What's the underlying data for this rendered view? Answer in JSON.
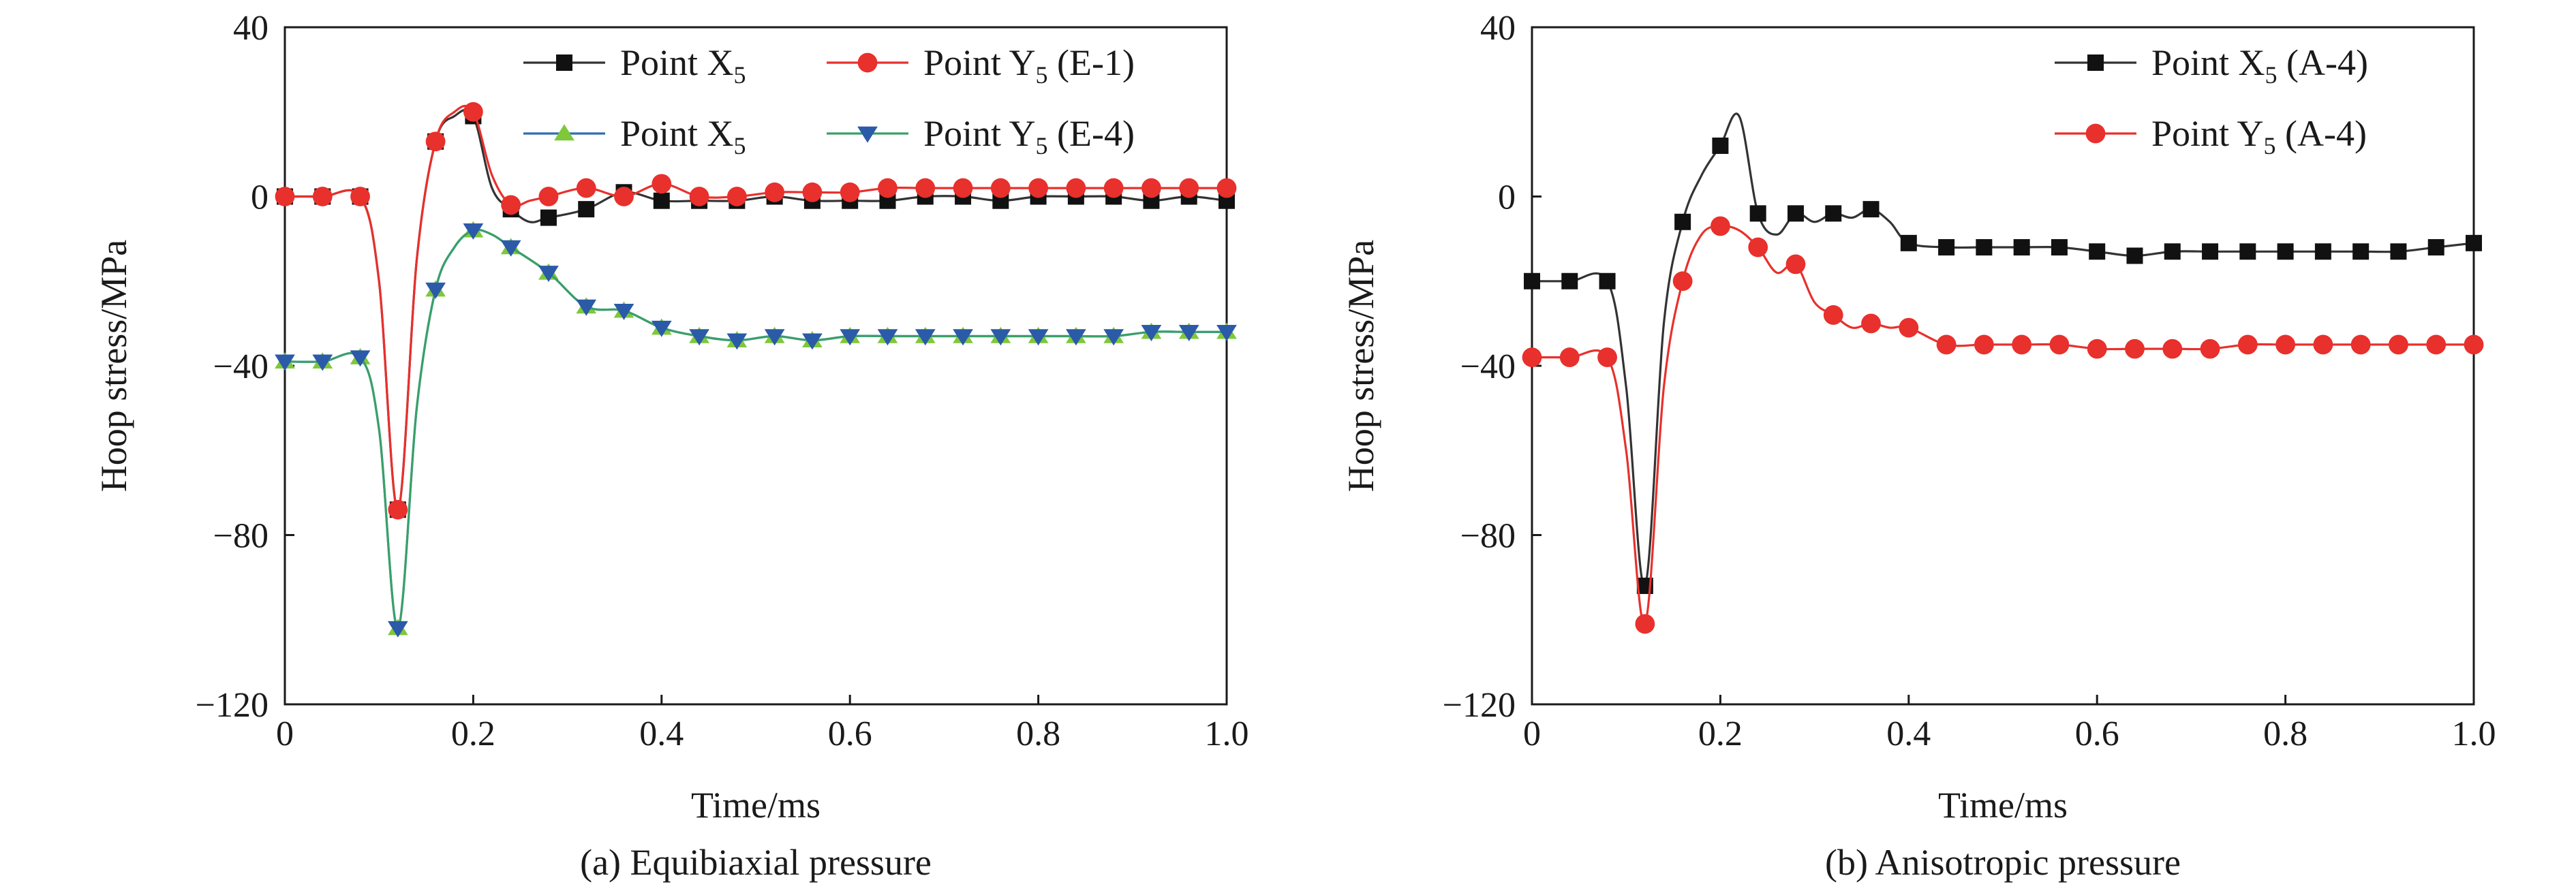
{
  "chart_data": [
    {
      "type": "line",
      "caption": "(a) Equibiaxial pressure",
      "xlabel": "Time/ms",
      "ylabel": "Hoop stress/MPa",
      "xlim": [
        0,
        1.0
      ],
      "ylim": [
        -120,
        40
      ],
      "xticks": [
        0,
        0.2,
        0.4,
        0.6,
        0.8,
        1.0
      ],
      "xtick_labels": [
        "0",
        "0.2",
        "0.4",
        "0.6",
        "0.8",
        "1.0"
      ],
      "yticks": [
        -120,
        -80,
        -40,
        0,
        40
      ],
      "ytick_labels": [
        "−120",
        "−80",
        "−40",
        "0",
        "40"
      ],
      "legend_position": "top-right",
      "series": [
        {
          "name": "Point X",
          "subscript": "5",
          "color": "#333333",
          "marker": "square",
          "marker_color": "#111111",
          "x": [
            0,
            0.04,
            0.08,
            0.1,
            0.12,
            0.14,
            0.16,
            0.18,
            0.2,
            0.22,
            0.24,
            0.26,
            0.28,
            0.32,
            0.36,
            0.4,
            0.44,
            0.48,
            0.52,
            0.56,
            0.6,
            0.64,
            0.68,
            0.72,
            0.76,
            0.8,
            0.84,
            0.88,
            0.92,
            0.96,
            1.0
          ],
          "y": [
            0,
            0,
            0,
            -20,
            -74,
            -15,
            13,
            19,
            19,
            2,
            -3,
            -6,
            -5,
            -3,
            1,
            -1,
            -1,
            -1,
            0,
            -1,
            -1,
            -1,
            0,
            0,
            -1,
            0,
            0,
            0,
            -1,
            0,
            -1
          ]
        },
        {
          "name": "Point Y",
          "subscript": "5",
          "label_suffix": "(E-1)",
          "color": "#e8302c",
          "marker": "circle",
          "marker_color": "#e8302c",
          "x": [
            0,
            0.04,
            0.08,
            0.1,
            0.12,
            0.14,
            0.16,
            0.18,
            0.2,
            0.22,
            0.24,
            0.26,
            0.28,
            0.32,
            0.36,
            0.4,
            0.44,
            0.48,
            0.52,
            0.56,
            0.6,
            0.64,
            0.68,
            0.72,
            0.76,
            0.8,
            0.84,
            0.88,
            0.92,
            0.96,
            1.0
          ],
          "y": [
            0,
            0,
            0,
            -20,
            -74,
            -15,
            13,
            20,
            20,
            5,
            -2,
            -1,
            0,
            2,
            0,
            3,
            0,
            0,
            1,
            1,
            1,
            2,
            2,
            2,
            2,
            2,
            2,
            2,
            2,
            2,
            2
          ]
        },
        {
          "name": "Point X",
          "subscript": "5",
          "color": "#2e6db5",
          "marker": "triangle-up",
          "marker_color": "#7ec83a",
          "x": [
            0,
            0.04,
            0.08,
            0.1,
            0.12,
            0.14,
            0.16,
            0.18,
            0.2,
            0.22,
            0.24,
            0.28,
            0.32,
            0.36,
            0.4,
            0.44,
            0.48,
            0.52,
            0.56,
            0.6,
            0.64,
            0.68,
            0.72,
            0.76,
            0.8,
            0.84,
            0.88,
            0.92,
            0.96,
            1.0
          ],
          "y": [
            -39,
            -39,
            -38,
            -55,
            -102,
            -50,
            -22,
            -12,
            -8,
            -9,
            -12,
            -18,
            -26,
            -27,
            -31,
            -33,
            -34,
            -33,
            -34,
            -33,
            -33,
            -33,
            -33,
            -33,
            -33,
            -33,
            -33,
            -32,
            -32,
            -32
          ]
        },
        {
          "name": "Point Y",
          "subscript": "5",
          "label_suffix": "(E-4)",
          "color": "#3aa068",
          "marker": "triangle-down",
          "marker_color": "#2b5aa8",
          "x": [
            0,
            0.04,
            0.08,
            0.1,
            0.12,
            0.14,
            0.16,
            0.18,
            0.2,
            0.22,
            0.24,
            0.28,
            0.32,
            0.36,
            0.4,
            0.44,
            0.48,
            0.52,
            0.56,
            0.6,
            0.64,
            0.68,
            0.72,
            0.76,
            0.8,
            0.84,
            0.88,
            0.92,
            0.96,
            1.0
          ],
          "y": [
            -39,
            -39,
            -38,
            -55,
            -102,
            -50,
            -22,
            -12,
            -8,
            -9,
            -12,
            -18,
            -26,
            -27,
            -31,
            -33,
            -34,
            -33,
            -34,
            -33,
            -33,
            -33,
            -33,
            -33,
            -33,
            -33,
            -33,
            -32,
            -32,
            -32
          ]
        }
      ]
    },
    {
      "type": "line",
      "caption": "(b) Anisotropic pressure",
      "xlabel": "Time/ms",
      "ylabel": "Hoop stress/MPa",
      "xlim": [
        0,
        1.0
      ],
      "ylim": [
        -120,
        40
      ],
      "xticks": [
        0,
        0.2,
        0.4,
        0.6,
        0.8,
        1.0
      ],
      "xtick_labels": [
        "0",
        "0.2",
        "0.4",
        "0.6",
        "0.8",
        "1.0"
      ],
      "yticks": [
        -120,
        -80,
        -40,
        0,
        40
      ],
      "ytick_labels": [
        "−120",
        "−80",
        "−40",
        "0",
        "40"
      ],
      "legend_position": "top-right",
      "series": [
        {
          "name": "Point X",
          "subscript": "5",
          "label_suffix": "(A-4)",
          "color": "#333333",
          "marker": "square",
          "marker_color": "#111111",
          "x": [
            0,
            0.04,
            0.08,
            0.1,
            0.12,
            0.14,
            0.16,
            0.18,
            0.2,
            0.22,
            0.24,
            0.26,
            0.28,
            0.3,
            0.32,
            0.34,
            0.36,
            0.38,
            0.4,
            0.44,
            0.48,
            0.52,
            0.56,
            0.6,
            0.64,
            0.68,
            0.72,
            0.76,
            0.8,
            0.84,
            0.88,
            0.92,
            0.96,
            1.0
          ],
          "y": [
            -20,
            -20,
            -20,
            -45,
            -92,
            -30,
            -6,
            5,
            12,
            19,
            -4,
            -9,
            -4,
            -6,
            -4,
            -5,
            -3,
            -6,
            -11,
            -12,
            -12,
            -12,
            -12,
            -13,
            -14,
            -13,
            -13,
            -13,
            -13,
            -13,
            -13,
            -13,
            -12,
            -11
          ]
        },
        {
          "name": "Point Y",
          "subscript": "5",
          "label_suffix": "(A-4)",
          "color": "#e8302c",
          "marker": "circle",
          "marker_color": "#e8302c",
          "x": [
            0,
            0.04,
            0.08,
            0.1,
            0.12,
            0.14,
            0.16,
            0.18,
            0.2,
            0.22,
            0.24,
            0.26,
            0.28,
            0.3,
            0.32,
            0.34,
            0.36,
            0.38,
            0.4,
            0.44,
            0.48,
            0.52,
            0.56,
            0.6,
            0.64,
            0.68,
            0.72,
            0.76,
            0.8,
            0.84,
            0.88,
            0.92,
            0.96,
            1.0
          ],
          "y": [
            -38,
            -38,
            -38,
            -60,
            -101,
            -45,
            -20,
            -9,
            -7,
            -8,
            -12,
            -18,
            -16,
            -25,
            -28,
            -31,
            -30,
            -31,
            -31,
            -35,
            -35,
            -35,
            -35,
            -36,
            -36,
            -36,
            -36,
            -35,
            -35,
            -35,
            -35,
            -35,
            -35,
            -35
          ]
        }
      ]
    }
  ]
}
